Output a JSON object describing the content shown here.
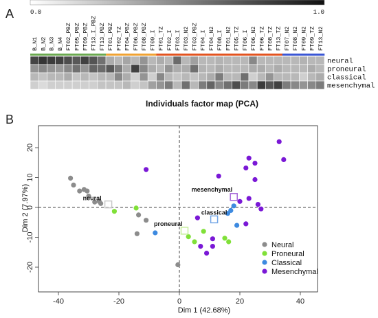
{
  "chart_data": [
    {
      "type": "heatmap",
      "panel": "A",
      "colorscale": {
        "min_label": "0.0",
        "max_label": "1.0",
        "min_color": "#ffffff",
        "max_color": "#111111"
      },
      "columns": [
        "B_N1",
        "B_N2",
        "B_N3",
        "B_N4",
        "FT02_PBZ",
        "FT05_PBZ",
        "FT09_PBZ",
        "FT13_I_PBZ",
        "FT13_PBZ",
        "FT01_PBZ",
        "FT02_TZ",
        "FT04_PBZ",
        "FT06_PBZ",
        "FT08_PBZ",
        "FT09_I",
        "FT01_TZ",
        "FT02_I",
        "FT03_I",
        "FT03_N2",
        "FT03_PBZ",
        "FT04_I",
        "FT04_N2",
        "FT08_I",
        "FT01_N2",
        "FT05_TZ",
        "FT06_I",
        "FT06_N2",
        "FT06_TZ",
        "FT08_TZ",
        "FT13_TZ",
        "FT07_N2",
        "FT08_N2",
        "FT09_N2",
        "FT09_TZ",
        "FT13_N2"
      ],
      "group_colors": [
        "#6aa84f",
        "#6aa84f",
        "#6aa84f",
        "#6aa84f",
        "#6aa84f",
        "#6aa84f",
        "#6aa84f",
        "#6aa84f",
        "#6aa84f",
        "#f0a232",
        "#f0a232",
        "#f0a232",
        "#f0a232",
        "#f0a232",
        "#f0a232",
        "#e2531f",
        "#e2531f",
        "#e2531f",
        "#e2531f",
        "#e2531f",
        "#e2531f",
        "#e2531f",
        "#e2531f",
        "#e2531f",
        "#e2531f",
        "#e2531f",
        "#e2531f",
        "#e2531f",
        "#e2531f",
        "#e2531f",
        "#3a56d4",
        "#3a56d4",
        "#3a56d4",
        "#3a56d4",
        "#3a56d4"
      ],
      "rows": [
        "neural",
        "proneural",
        "classical",
        "mesenchymal"
      ],
      "values": [
        [
          0.78,
          0.85,
          0.82,
          0.8,
          0.75,
          0.7,
          0.8,
          0.72,
          0.6,
          0.35,
          0.3,
          0.38,
          0.3,
          0.45,
          0.3,
          0.35,
          0.3,
          0.62,
          0.3,
          0.4,
          0.3,
          0.3,
          0.32,
          0.3,
          0.3,
          0.3,
          0.5,
          0.3,
          0.3,
          0.3,
          0.3,
          0.3,
          0.32,
          0.3,
          0.3
        ],
        [
          0.45,
          0.5,
          0.45,
          0.42,
          0.5,
          0.6,
          0.45,
          0.65,
          0.62,
          0.7,
          0.55,
          0.35,
          0.8,
          0.5,
          0.35,
          0.3,
          0.45,
          0.35,
          0.35,
          0.6,
          0.32,
          0.3,
          0.35,
          0.3,
          0.3,
          0.3,
          0.35,
          0.35,
          0.3,
          0.35,
          0.3,
          0.3,
          0.3,
          0.35,
          0.3
        ],
        [
          0.3,
          0.25,
          0.3,
          0.3,
          0.35,
          0.25,
          0.3,
          0.25,
          0.3,
          0.3,
          0.5,
          0.35,
          0.2,
          0.45,
          0.2,
          0.5,
          0.3,
          0.25,
          0.3,
          0.25,
          0.3,
          0.35,
          0.55,
          0.3,
          0.3,
          0.6,
          0.2,
          0.3,
          0.45,
          0.3,
          0.3,
          0.3,
          0.2,
          0.3,
          0.35
        ],
        [
          0.2,
          0.15,
          0.2,
          0.2,
          0.2,
          0.2,
          0.2,
          0.2,
          0.25,
          0.25,
          0.25,
          0.3,
          0.2,
          0.25,
          0.4,
          0.45,
          0.55,
          0.3,
          0.6,
          0.3,
          0.55,
          0.65,
          0.5,
          0.6,
          0.75,
          0.55,
          0.5,
          0.82,
          0.72,
          0.8,
          0.55,
          0.5,
          0.45,
          0.5,
          0.55
        ]
      ]
    },
    {
      "type": "scatter",
      "panel": "B",
      "title": "Individuals factor map (PCA)",
      "xlabel": "Dim 1 (42.68%)",
      "ylabel": "Dim 2 (7.97%)",
      "xlim": [
        -48,
        45
      ],
      "ylim": [
        -24,
        25
      ],
      "xticks": [
        -40,
        -20,
        0,
        20,
        40
      ],
      "yticks": [
        -20,
        -10,
        0,
        10,
        20
      ],
      "legend_position": "bottom-right",
      "series": [
        {
          "name": "Neural",
          "color": "#8c8c8c",
          "points": [
            [
              -36,
              9.8
            ],
            [
              -35,
              7.5
            ],
            [
              -33,
              5.5
            ],
            [
              -31.5,
              6
            ],
            [
              -30.5,
              5.5
            ],
            [
              -30,
              3.8
            ],
            [
              -28,
              1.8
            ],
            [
              -26.5,
              2
            ],
            [
              -26,
              1.3
            ],
            [
              -14,
              -8.8
            ],
            [
              -11,
              -4.3
            ],
            [
              -13.5,
              -2.5
            ],
            [
              -0.5,
              -19.2
            ]
          ]
        },
        {
          "name": "Proneural",
          "color": "#80e038",
          "points": [
            [
              -21.5,
              -1.3
            ],
            [
              -14.3,
              -0.2
            ],
            [
              3,
              -9.8
            ],
            [
              5,
              -11.5
            ],
            [
              8,
              -8
            ],
            [
              15,
              -10.3
            ],
            [
              16.3,
              -11.5
            ]
          ]
        },
        {
          "name": "Classical",
          "color": "#3d8ae0",
          "points": [
            [
              -8,
              -8.5
            ],
            [
              16,
              -2
            ],
            [
              17,
              -1
            ],
            [
              18,
              0.5
            ],
            [
              19,
              -6
            ]
          ]
        },
        {
          "name": "Mesenchymal",
          "color": "#7a18d6",
          "points": [
            [
              -11,
              12.7
            ],
            [
              6,
              -3.5
            ],
            [
              7,
              -13
            ],
            [
              9,
              -15.3
            ],
            [
              11,
              -13
            ],
            [
              11,
              -10.5
            ],
            [
              13,
              10.5
            ],
            [
              20,
              2
            ],
            [
              22,
              13.2
            ],
            [
              23,
              3
            ],
            [
              22,
              -5.5
            ],
            [
              23,
              16.5
            ],
            [
              25,
              14.8
            ],
            [
              25,
              9.3
            ],
            [
              26,
              1
            ],
            [
              27,
              -0.5
            ],
            [
              33,
              22
            ],
            [
              34.5,
              16
            ]
          ]
        }
      ],
      "centroids": [
        {
          "label": "neural",
          "color": "#c8c8c8",
          "x": -23.5,
          "y": 1
        },
        {
          "label": "proneural",
          "color": "#c6ef9c",
          "x": 1.7,
          "y": -7.8
        },
        {
          "label": "classical",
          "color": "#73a6e6",
          "x": 11.5,
          "y": -4
        },
        {
          "label": "mesenchymal",
          "color": "#a666d8",
          "x": 18,
          "y": 3.5
        }
      ]
    }
  ]
}
